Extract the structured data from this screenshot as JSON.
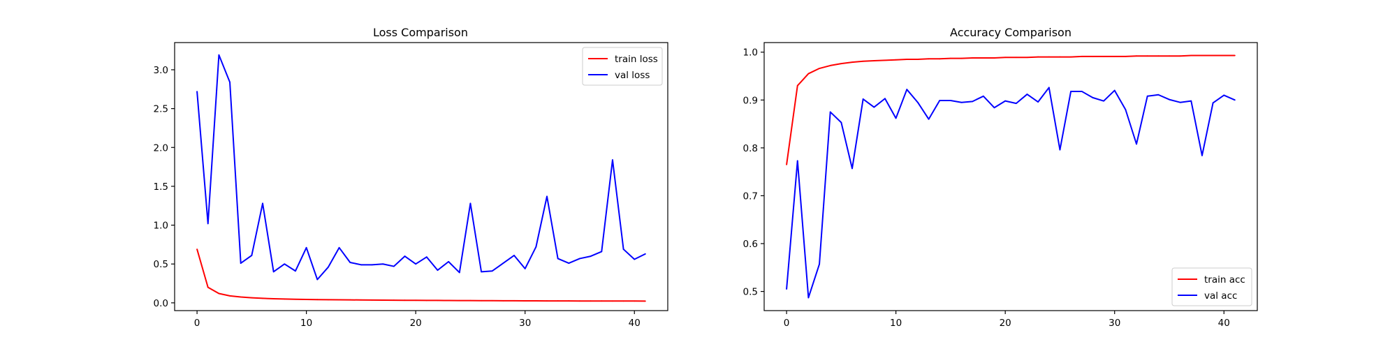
{
  "chart_data": [
    {
      "type": "line",
      "title": "Loss Comparison",
      "xlabel": "",
      "ylabel": "",
      "xlim": [
        -2.05,
        43.05
      ],
      "ylim": [
        -0.1,
        3.35
      ],
      "xticks": [
        0,
        10,
        20,
        30,
        40
      ],
      "yticks": [
        0.0,
        0.5,
        1.0,
        1.5,
        2.0,
        2.5,
        3.0
      ],
      "ytick_format": "1dp",
      "grid": false,
      "legend_position": "top-right",
      "x": [
        0,
        1,
        2,
        3,
        4,
        5,
        6,
        7,
        8,
        9,
        10,
        11,
        12,
        13,
        14,
        15,
        16,
        17,
        18,
        19,
        20,
        21,
        22,
        23,
        24,
        25,
        26,
        27,
        28,
        29,
        30,
        31,
        32,
        33,
        34,
        35,
        36,
        37,
        38,
        39,
        40,
        41
      ],
      "series": [
        {
          "name": "train loss",
          "color": "#ff0000",
          "values": [
            0.69,
            0.2,
            0.12,
            0.09,
            0.075,
            0.065,
            0.058,
            0.053,
            0.049,
            0.046,
            0.044,
            0.042,
            0.04,
            0.039,
            0.038,
            0.037,
            0.036,
            0.035,
            0.034,
            0.033,
            0.032,
            0.031,
            0.031,
            0.03,
            0.029,
            0.029,
            0.028,
            0.028,
            0.027,
            0.027,
            0.026,
            0.026,
            0.025,
            0.025,
            0.025,
            0.024,
            0.024,
            0.024,
            0.023,
            0.023,
            0.023,
            0.022
          ]
        },
        {
          "name": "val loss",
          "color": "#0000ff",
          "values": [
            2.72,
            1.02,
            3.19,
            2.84,
            0.51,
            0.61,
            1.28,
            0.4,
            0.5,
            0.41,
            0.71,
            0.3,
            0.46,
            0.71,
            0.52,
            0.49,
            0.49,
            0.5,
            0.47,
            0.6,
            0.5,
            0.59,
            0.42,
            0.53,
            0.39,
            1.28,
            0.4,
            0.41,
            0.51,
            0.61,
            0.44,
            0.72,
            1.37,
            0.57,
            0.51,
            0.57,
            0.6,
            0.66,
            1.84,
            0.69,
            0.56,
            0.63
          ]
        }
      ]
    },
    {
      "type": "line",
      "title": "Accuracy Comparison",
      "xlabel": "",
      "ylabel": "",
      "xlim": [
        -2.05,
        43.05
      ],
      "ylim": [
        0.46,
        1.02
      ],
      "xticks": [
        0,
        10,
        20,
        30,
        40
      ],
      "yticks": [
        0.5,
        0.6,
        0.7,
        0.8,
        0.9,
        1.0
      ],
      "ytick_format": "1dp",
      "grid": false,
      "legend_position": "bottom-right",
      "x": [
        0,
        1,
        2,
        3,
        4,
        5,
        6,
        7,
        8,
        9,
        10,
        11,
        12,
        13,
        14,
        15,
        16,
        17,
        18,
        19,
        20,
        21,
        22,
        23,
        24,
        25,
        26,
        27,
        28,
        29,
        30,
        31,
        32,
        33,
        34,
        35,
        36,
        37,
        38,
        39,
        40,
        41
      ],
      "series": [
        {
          "name": "train acc",
          "color": "#ff0000",
          "values": [
            0.765,
            0.93,
            0.955,
            0.966,
            0.972,
            0.976,
            0.979,
            0.981,
            0.982,
            0.983,
            0.984,
            0.985,
            0.985,
            0.986,
            0.986,
            0.987,
            0.987,
            0.988,
            0.988,
            0.988,
            0.989,
            0.989,
            0.989,
            0.99,
            0.99,
            0.99,
            0.99,
            0.991,
            0.991,
            0.991,
            0.991,
            0.991,
            0.992,
            0.992,
            0.992,
            0.992,
            0.992,
            0.993,
            0.993,
            0.993,
            0.993,
            0.993
          ]
        },
        {
          "name": "val acc",
          "color": "#0000ff",
          "values": [
            0.505,
            0.773,
            0.487,
            0.557,
            0.875,
            0.853,
            0.757,
            0.902,
            0.885,
            0.903,
            0.862,
            0.922,
            0.895,
            0.86,
            0.899,
            0.899,
            0.895,
            0.897,
            0.908,
            0.884,
            0.898,
            0.893,
            0.912,
            0.896,
            0.926,
            0.796,
            0.918,
            0.918,
            0.905,
            0.898,
            0.92,
            0.88,
            0.808,
            0.908,
            0.911,
            0.901,
            0.895,
            0.898,
            0.784,
            0.894,
            0.91,
            0.9
          ]
        }
      ]
    }
  ]
}
